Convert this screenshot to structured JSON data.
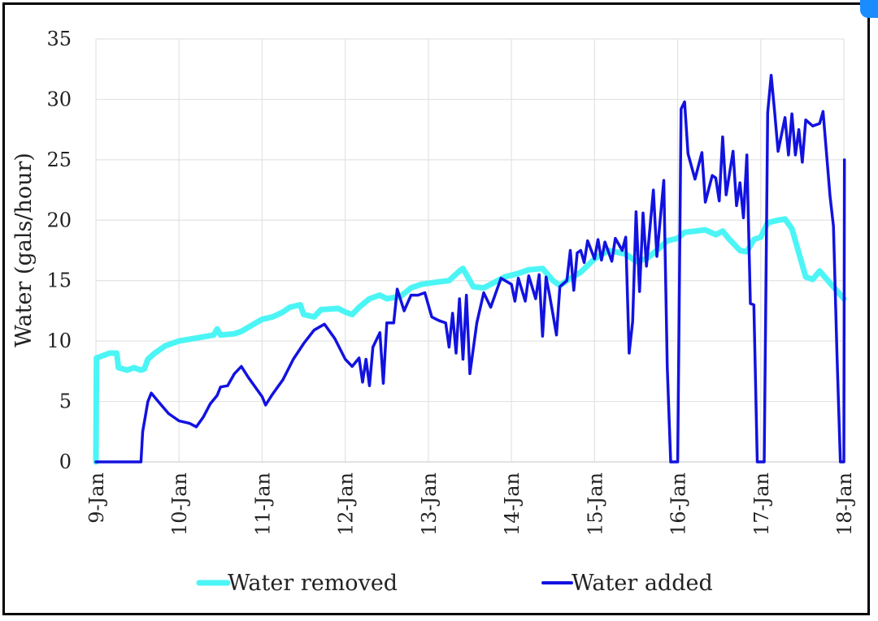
{
  "chart_data": {
    "type": "line",
    "ylabel": "Water (gals/hour)",
    "ylim": [
      0,
      35
    ],
    "y_ticks": [
      0,
      5,
      10,
      15,
      20,
      25,
      30,
      35
    ],
    "x_tick_labels": [
      "9-Jan",
      "10-Jan",
      "11-Jan",
      "12-Jan",
      "13-Jan",
      "14-Jan",
      "15-Jan",
      "16-Jan",
      "17-Jan",
      "18-Jan"
    ],
    "grid": true,
    "legend_position": "bottom",
    "series": [
      {
        "name": "Water removed",
        "color": "#4cf5f5",
        "points": [
          [
            "9-Jan 00:00",
            0
          ],
          [
            "9-Jan 00:10",
            8.6
          ],
          [
            "9-Jan 04:00",
            9.0
          ],
          [
            "9-Jan 06:00",
            9.0
          ],
          [
            "9-Jan 06:30",
            7.8
          ],
          [
            "9-Jan 09:00",
            7.6
          ],
          [
            "9-Jan 11:00",
            7.8
          ],
          [
            "9-Jan 13:00",
            7.6
          ],
          [
            "9-Jan 14:00",
            7.7
          ],
          [
            "9-Jan 15:00",
            8.5
          ],
          [
            "9-Jan 17:00",
            9.0
          ],
          [
            "9-Jan 20:00",
            9.6
          ],
          [
            "10-Jan 00:00",
            10.0
          ],
          [
            "10-Jan 06:00",
            10.3
          ],
          [
            "10-Jan 10:00",
            10.5
          ],
          [
            "10-Jan 11:00",
            11.0
          ],
          [
            "10-Jan 12:00",
            10.5
          ],
          [
            "10-Jan 16:00",
            10.6
          ],
          [
            "10-Jan 18:00",
            10.8
          ],
          [
            "11-Jan 00:00",
            11.8
          ],
          [
            "11-Jan 03:00",
            12.0
          ],
          [
            "11-Jan 06:00",
            12.4
          ],
          [
            "11-Jan 08:00",
            12.8
          ],
          [
            "11-Jan 11:00",
            13.0
          ],
          [
            "11-Jan 12:00",
            12.2
          ],
          [
            "11-Jan 15:00",
            12.0
          ],
          [
            "11-Jan 17:00",
            12.6
          ],
          [
            "11-Jan 22:00",
            12.7
          ],
          [
            "12-Jan 00:00",
            12.4
          ],
          [
            "12-Jan 02:00",
            12.2
          ],
          [
            "12-Jan 04:00",
            12.8
          ],
          [
            "12-Jan 07:00",
            13.5
          ],
          [
            "12-Jan 10:00",
            13.8
          ],
          [
            "12-Jan 12:00",
            13.5
          ],
          [
            "12-Jan 16:00",
            13.7
          ],
          [
            "12-Jan 19:00",
            14.4
          ],
          [
            "12-Jan 22:00",
            14.7
          ],
          [
            "13-Jan 03:00",
            14.9
          ],
          [
            "13-Jan 06:00",
            15.0
          ],
          [
            "13-Jan 09:00",
            15.8
          ],
          [
            "13-Jan 10:00",
            16.0
          ],
          [
            "13-Jan 11:00",
            15.5
          ],
          [
            "13-Jan 13:00",
            14.5
          ],
          [
            "13-Jan 16:00",
            14.4
          ],
          [
            "13-Jan 18:00",
            14.7
          ],
          [
            "13-Jan 22:00",
            15.3
          ],
          [
            "14-Jan 02:00",
            15.6
          ],
          [
            "14-Jan 05:00",
            15.9
          ],
          [
            "14-Jan 09:00",
            16.0
          ],
          [
            "14-Jan 12:00",
            15.0
          ],
          [
            "14-Jan 14:00",
            14.6
          ],
          [
            "14-Jan 16:00",
            15.0
          ],
          [
            "14-Jan 20:00",
            15.7
          ],
          [
            "15-Jan 00:00",
            16.8
          ],
          [
            "15-Jan 04:00",
            17.5
          ],
          [
            "15-Jan 09:00",
            17.2
          ],
          [
            "15-Jan 12:00",
            16.6
          ],
          [
            "15-Jan 15:00",
            16.8
          ],
          [
            "15-Jan 18:00",
            17.5
          ],
          [
            "15-Jan 21:00",
            18.3
          ],
          [
            "16-Jan 00:00",
            18.5
          ],
          [
            "16-Jan 02:00",
            19.0
          ],
          [
            "16-Jan 08:00",
            19.2
          ],
          [
            "16-Jan 11:00",
            18.8
          ],
          [
            "16-Jan 13:00",
            19.1
          ],
          [
            "16-Jan 15:00",
            18.4
          ],
          [
            "16-Jan 18:00",
            17.5
          ],
          [
            "16-Jan 20:00",
            17.4
          ],
          [
            "16-Jan 22:00",
            18.4
          ],
          [
            "17-Jan 00:00",
            18.6
          ],
          [
            "17-Jan 02:00",
            19.8
          ],
          [
            "17-Jan 05:00",
            20.0
          ],
          [
            "17-Jan 07:00",
            20.1
          ],
          [
            "17-Jan 09:00",
            19.3
          ],
          [
            "17-Jan 11:00",
            17.3
          ],
          [
            "17-Jan 13:00",
            15.3
          ],
          [
            "17-Jan 15:00",
            15.1
          ],
          [
            "17-Jan 17:00",
            15.8
          ],
          [
            "17-Jan 20:00",
            14.8
          ],
          [
            "18-Jan 00:00",
            13.5
          ]
        ]
      },
      {
        "name": "Water added",
        "color": "#1212e0",
        "points": [
          [
            "9-Jan 00:00",
            0
          ],
          [
            "9-Jan 10:00",
            0
          ],
          [
            "9-Jan 13:00",
            0
          ],
          [
            "9-Jan 13:30",
            2.5
          ],
          [
            "9-Jan 15:00",
            5.0
          ],
          [
            "9-Jan 16:00",
            5.7
          ],
          [
            "9-Jan 18:00",
            5.0
          ],
          [
            "9-Jan 21:00",
            4.0
          ],
          [
            "10-Jan 00:00",
            3.4
          ],
          [
            "10-Jan 03:00",
            3.2
          ],
          [
            "10-Jan 05:00",
            2.9
          ],
          [
            "10-Jan 07:00",
            3.7
          ],
          [
            "10-Jan 09:00",
            4.8
          ],
          [
            "10-Jan 11:00",
            5.5
          ],
          [
            "10-Jan 12:00",
            6.2
          ],
          [
            "10-Jan 14:00",
            6.3
          ],
          [
            "10-Jan 16:00",
            7.3
          ],
          [
            "10-Jan 18:00",
            7.9
          ],
          [
            "10-Jan 20:00",
            7.0
          ],
          [
            "11-Jan 00:00",
            5.4
          ],
          [
            "11-Jan 01:00",
            4.7
          ],
          [
            "11-Jan 03:00",
            5.6
          ],
          [
            "11-Jan 06:00",
            6.8
          ],
          [
            "11-Jan 09:00",
            8.5
          ],
          [
            "11-Jan 12:00",
            9.8
          ],
          [
            "11-Jan 15:00",
            10.9
          ],
          [
            "11-Jan 18:00",
            11.4
          ],
          [
            "11-Jan 21:00",
            10.2
          ],
          [
            "12-Jan 00:00",
            8.5
          ],
          [
            "12-Jan 02:00",
            7.9
          ],
          [
            "12-Jan 04:00",
            8.6
          ],
          [
            "12-Jan 05:00",
            6.6
          ],
          [
            "12-Jan 06:00",
            8.5
          ],
          [
            "12-Jan 07:00",
            6.3
          ],
          [
            "12-Jan 08:00",
            9.5
          ],
          [
            "12-Jan 10:00",
            10.7
          ],
          [
            "12-Jan 11:00",
            6.5
          ],
          [
            "12-Jan 12:00",
            11.5
          ],
          [
            "12-Jan 14:00",
            11.5
          ],
          [
            "12-Jan 15:00",
            14.3
          ],
          [
            "12-Jan 17:00",
            12.5
          ],
          [
            "12-Jan 19:00",
            13.8
          ],
          [
            "12-Jan 21:00",
            13.8
          ],
          [
            "12-Jan 23:00",
            14.0
          ],
          [
            "13-Jan 01:00",
            12.0
          ],
          [
            "13-Jan 03:00",
            11.7
          ],
          [
            "13-Jan 05:00",
            11.5
          ],
          [
            "13-Jan 06:00",
            9.5
          ],
          [
            "13-Jan 07:00",
            12.3
          ],
          [
            "13-Jan 08:00",
            9.0
          ],
          [
            "13-Jan 09:00",
            13.5
          ],
          [
            "13-Jan 10:00",
            8.5
          ],
          [
            "13-Jan 11:00",
            13.8
          ],
          [
            "13-Jan 12:00",
            7.3
          ],
          [
            "13-Jan 14:00",
            11.5
          ],
          [
            "13-Jan 16:00",
            14.0
          ],
          [
            "13-Jan 18:00",
            12.8
          ],
          [
            "13-Jan 21:00",
            15.2
          ],
          [
            "14-Jan 00:00",
            14.7
          ],
          [
            "14-Jan 01:00",
            13.3
          ],
          [
            "14-Jan 02:00",
            15.2
          ],
          [
            "14-Jan 04:00",
            13.3
          ],
          [
            "14-Jan 05:00",
            15.4
          ],
          [
            "14-Jan 07:00",
            13.5
          ],
          [
            "14-Jan 08:00",
            15.5
          ],
          [
            "14-Jan 09:00",
            10.4
          ],
          [
            "14-Jan 10:00",
            15.3
          ],
          [
            "14-Jan 11:00",
            13.8
          ],
          [
            "14-Jan 12:00",
            12.2
          ],
          [
            "14-Jan 13:00",
            10.5
          ],
          [
            "14-Jan 14:00",
            14.5
          ],
          [
            "14-Jan 16:00",
            15.0
          ],
          [
            "14-Jan 17:00",
            17.5
          ],
          [
            "14-Jan 18:00",
            14.2
          ],
          [
            "14-Jan 19:00",
            17.3
          ],
          [
            "14-Jan 20:00",
            17.5
          ],
          [
            "14-Jan 21:00",
            16.5
          ],
          [
            "14-Jan 22:00",
            18.3
          ],
          [
            "15-Jan 00:00",
            16.8
          ],
          [
            "15-Jan 01:00",
            18.4
          ],
          [
            "15-Jan 02:00",
            16.7
          ],
          [
            "15-Jan 03:00",
            18.2
          ],
          [
            "15-Jan 05:00",
            16.6
          ],
          [
            "15-Jan 06:00",
            18.5
          ],
          [
            "15-Jan 08:00",
            17.5
          ],
          [
            "15-Jan 09:00",
            18.6
          ],
          [
            "15-Jan 10:00",
            9.0
          ],
          [
            "15-Jan 11:00",
            11.6
          ],
          [
            "15-Jan 12:00",
            20.7
          ],
          [
            "15-Jan 13:00",
            14.1
          ],
          [
            "15-Jan 14:00",
            20.6
          ],
          [
            "15-Jan 15:00",
            16.2
          ],
          [
            "15-Jan 17:00",
            22.5
          ],
          [
            "15-Jan 18:00",
            17.0
          ],
          [
            "15-Jan 20:00",
            23.3
          ],
          [
            "15-Jan 21:00",
            7.8
          ],
          [
            "15-Jan 22:00",
            0
          ],
          [
            "16-Jan 00:00",
            0
          ],
          [
            "16-Jan 01:00",
            29.2
          ],
          [
            "16-Jan 02:00",
            29.8
          ],
          [
            "16-Jan 03:00",
            25.5
          ],
          [
            "16-Jan 05:00",
            23.4
          ],
          [
            "16-Jan 07:00",
            25.6
          ],
          [
            "16-Jan 08:00",
            21.5
          ],
          [
            "16-Jan 10:00",
            23.7
          ],
          [
            "16-Jan 11:00",
            23.5
          ],
          [
            "16-Jan 12:00",
            21.6
          ],
          [
            "16-Jan 13:00",
            26.9
          ],
          [
            "16-Jan 14:00",
            22.1
          ],
          [
            "16-Jan 16:00",
            25.7
          ],
          [
            "16-Jan 17:00",
            21.2
          ],
          [
            "16-Jan 18:00",
            23.1
          ],
          [
            "16-Jan 19:00",
            20.2
          ],
          [
            "16-Jan 20:00",
            25.4
          ],
          [
            "16-Jan 21:00",
            13.1
          ],
          [
            "16-Jan 22:00",
            13.0
          ],
          [
            "16-Jan 23:00",
            0
          ],
          [
            "17-Jan 01:00",
            0
          ],
          [
            "17-Jan 02:00",
            28.9
          ],
          [
            "17-Jan 03:00",
            32.0
          ],
          [
            "17-Jan 04:00",
            29.0
          ],
          [
            "17-Jan 05:00",
            25.7
          ],
          [
            "17-Jan 07:00",
            28.5
          ],
          [
            "17-Jan 08:00",
            25.4
          ],
          [
            "17-Jan 09:00",
            28.8
          ],
          [
            "17-Jan 10:00",
            25.4
          ],
          [
            "17-Jan 11:00",
            27.5
          ],
          [
            "17-Jan 12:00",
            24.8
          ],
          [
            "17-Jan 13:00",
            28.3
          ],
          [
            "17-Jan 15:00",
            27.8
          ],
          [
            "17-Jan 17:00",
            28.0
          ],
          [
            "17-Jan 18:00",
            29.0
          ],
          [
            "17-Jan 20:00",
            22.0
          ],
          [
            "17-Jan 21:00",
            19.5
          ],
          [
            "17-Jan 22:00",
            9.0
          ],
          [
            "17-Jan 23:00",
            0
          ],
          [
            "18-Jan 00:00",
            0
          ],
          [
            "18-Jan 00:10",
            25.0
          ]
        ]
      }
    ]
  }
}
